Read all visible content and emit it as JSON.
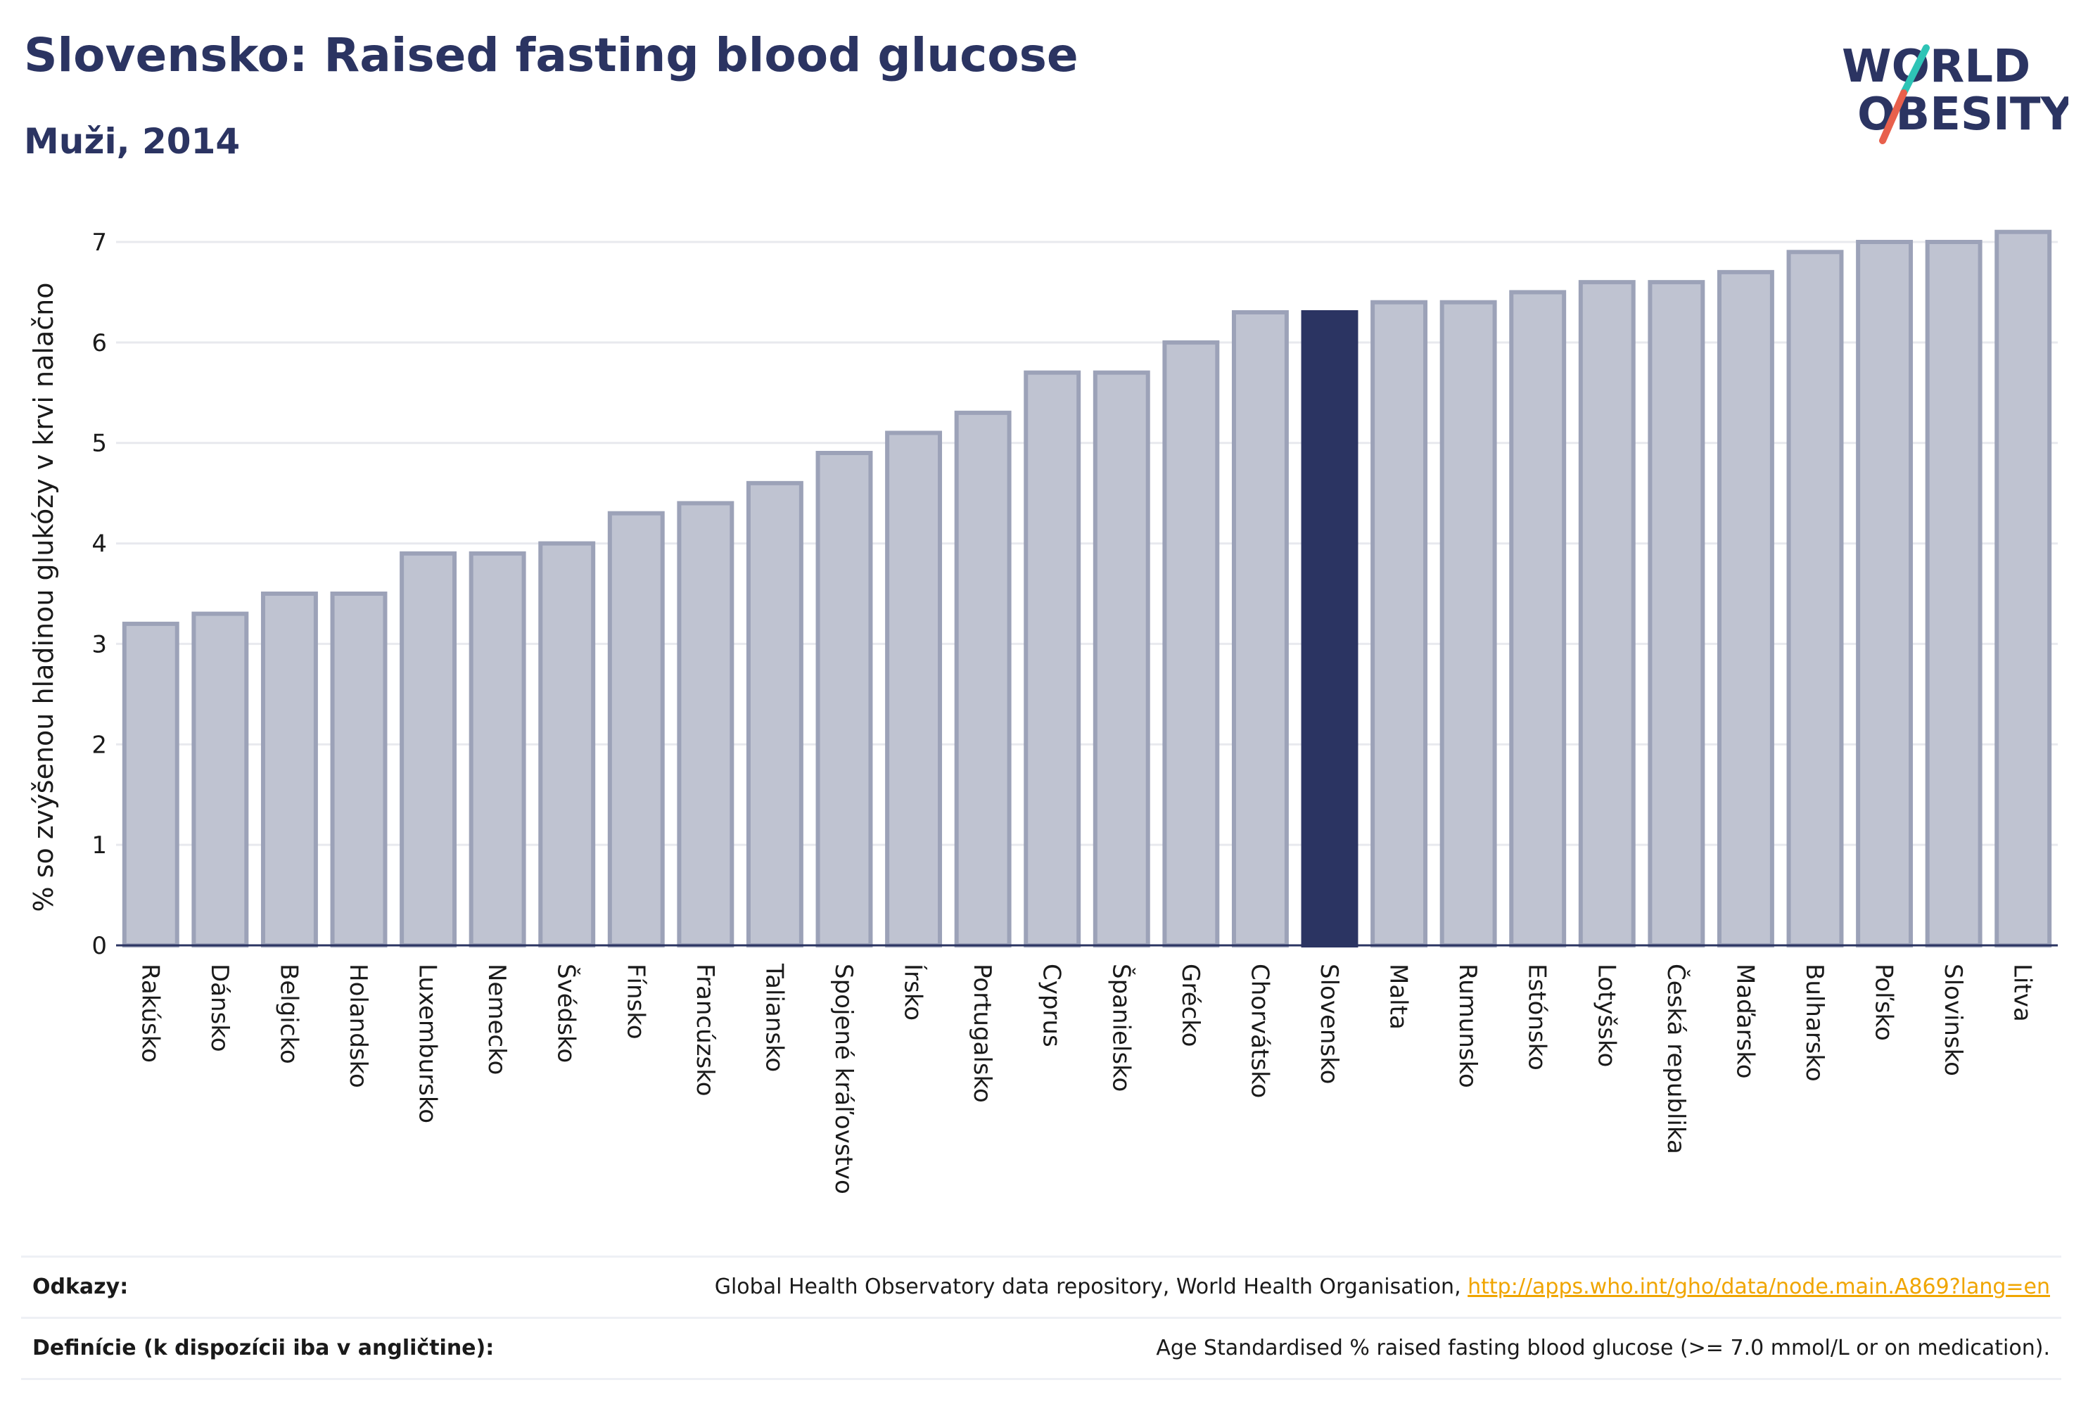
{
  "header": {
    "title": "Slovensko: Raised fasting blood glucose",
    "subtitle": "Muži, 2014"
  },
  "logo": {
    "line1": "WORLD",
    "line2": "OBESITY",
    "accent_colors": [
      "#2ec4b6",
      "#e8604c"
    ]
  },
  "colors": {
    "bar": "#bfc3d1",
    "bar_border": "#9ca2b8",
    "highlight": "#2b3462",
    "text": "#2b3462"
  },
  "chart_data": {
    "type": "bar",
    "ylabel": "% so zvýšenou hladinou glukózy v krvi nalačno",
    "ylim": [
      0,
      7.3
    ],
    "yticks": [
      0,
      1,
      2,
      3,
      4,
      5,
      6,
      7
    ],
    "grid": true,
    "highlight": "Slovensko",
    "categories": [
      "Rakúsko",
      "Dánsko",
      "Belgicko",
      "Holandsko",
      "Luxembursko",
      "Nemecko",
      "Švédsko",
      "Fínsko",
      "Francúzsko",
      "Taliansko",
      "Spojené kráľovstvo",
      "Írsko",
      "Portugalsko",
      "Cyprus",
      "Španielsko",
      "Grécko",
      "Chorvátsko",
      "Slovensko",
      "Malta",
      "Rumunsko",
      "Estónsko",
      "Lotyšsko",
      "Česká republika",
      "Maďarsko",
      "Bulharsko",
      "Poľsko",
      "Slovinsko",
      "Litva"
    ],
    "values": [
      3.2,
      3.3,
      3.5,
      3.5,
      3.9,
      3.9,
      4.0,
      4.3,
      4.4,
      4.6,
      4.9,
      5.1,
      5.3,
      5.7,
      5.7,
      6.0,
      6.3,
      6.3,
      6.4,
      6.4,
      6.5,
      6.6,
      6.6,
      6.7,
      6.9,
      7.0,
      7.0,
      7.1
    ]
  },
  "footer": {
    "sources_label": "Odkazy:",
    "sources_text": "Global Health Observatory data repository, World Health Organisation, ",
    "sources_link": "http://apps.who.int/gho/data/node.main.A869?lang=en",
    "definitions_label": "Definície (k dispozícii iba v angličtine):",
    "definitions_text": "Age Standardised % raised fasting blood glucose (>= 7.0 mmol/L or on medication)."
  }
}
